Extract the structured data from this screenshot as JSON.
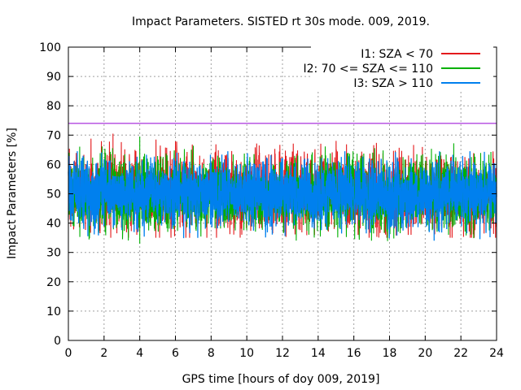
{
  "chart_data": {
    "type": "line",
    "title": "Impact Parameters. SISTED rt 30s mode. 009, 2019.",
    "xlabel": "GPS time [hours of doy 009, 2019]",
    "ylabel": "Impact Parameters [%]",
    "xlim": [
      0,
      24
    ],
    "ylim": [
      0,
      100
    ],
    "xticks": [
      0,
      2,
      4,
      6,
      8,
      10,
      12,
      14,
      16,
      18,
      20,
      22,
      24
    ],
    "yticks": [
      0,
      10,
      20,
      30,
      40,
      50,
      60,
      70,
      80,
      90,
      100
    ],
    "grid": true,
    "legend_position": "top-right",
    "reference_line": {
      "value": 74,
      "color": "#9400d3"
    },
    "series": [
      {
        "name": "I1: SZA < 70",
        "color": "#e41a1c",
        "mean": 50.5,
        "typical_range": [
          40,
          60
        ],
        "min": 35,
        "max": 70.5
      },
      {
        "name": "I2: 70 <= SZA <= 110",
        "color": "#00b000",
        "mean": 50,
        "typical_range": [
          41,
          59
        ],
        "min": 33,
        "max": 69.5
      },
      {
        "name": "I3: SZA > 110",
        "color": "#0080ee",
        "mean": 50,
        "typical_range": [
          42,
          59
        ],
        "min": 34,
        "max": 64.5
      }
    ]
  }
}
